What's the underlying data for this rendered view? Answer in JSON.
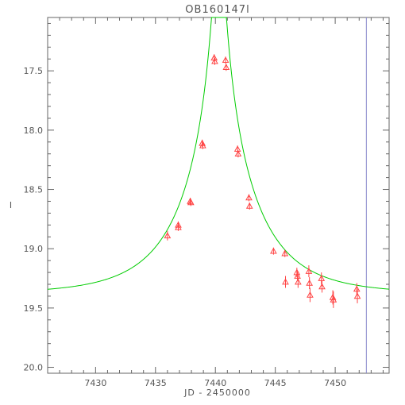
{
  "chart_data": {
    "type": "scatter",
    "title": "OB160147l",
    "xlabel": "JD - 2450000",
    "ylabel": "I",
    "xlim": [
      7426,
      7454.5
    ],
    "ylim": [
      20.05,
      17.05
    ],
    "y_inverted": true,
    "grid": false,
    "legend": "none",
    "xticks": [
      7430,
      7435,
      7440,
      7445,
      7450
    ],
    "xtick_labels": [
      "7430",
      "7435",
      "7440",
      "7445",
      "7450"
    ],
    "yticks": [
      17.5,
      18.0,
      18.5,
      19.0,
      19.5,
      20.0
    ],
    "ytick_labels": [
      "17.5",
      "18.0",
      "18.5",
      "19.0",
      "19.5",
      "20.0"
    ],
    "model_curve": {
      "t0": 7440.3,
      "tE": 6.0,
      "u0": 0.055,
      "baseline_mag": 19.38,
      "color": "#00cc00"
    },
    "vertical_line": {
      "x": 7452.6,
      "color": "#8888cc"
    },
    "points": [
      {
        "x": 7436.0,
        "y": 18.89,
        "err": 0.04
      },
      {
        "x": 7436.9,
        "y": 18.8,
        "err": 0.03
      },
      {
        "x": 7436.9,
        "y": 18.82,
        "err": 0.03
      },
      {
        "x": 7437.9,
        "y": 18.6,
        "err": 0.03
      },
      {
        "x": 7437.95,
        "y": 18.61,
        "err": 0.03
      },
      {
        "x": 7438.9,
        "y": 18.11,
        "err": 0.03
      },
      {
        "x": 7438.95,
        "y": 18.13,
        "err": 0.03
      },
      {
        "x": 7439.9,
        "y": 17.39,
        "err": 0.03
      },
      {
        "x": 7439.95,
        "y": 17.42,
        "err": 0.03
      },
      {
        "x": 7440.85,
        "y": 17.41,
        "err": 0.03
      },
      {
        "x": 7440.9,
        "y": 17.47,
        "err": 0.03
      },
      {
        "x": 7441.85,
        "y": 18.16,
        "err": 0.03
      },
      {
        "x": 7441.9,
        "y": 18.2,
        "err": 0.03
      },
      {
        "x": 7442.8,
        "y": 18.57,
        "err": 0.03
      },
      {
        "x": 7442.85,
        "y": 18.64,
        "err": 0.03
      },
      {
        "x": 7444.85,
        "y": 19.02,
        "err": 0.03
      },
      {
        "x": 7445.8,
        "y": 19.04,
        "err": 0.03
      },
      {
        "x": 7445.85,
        "y": 19.28,
        "err": 0.05
      },
      {
        "x": 7446.8,
        "y": 19.2,
        "err": 0.04
      },
      {
        "x": 7446.85,
        "y": 19.23,
        "err": 0.04
      },
      {
        "x": 7446.9,
        "y": 19.28,
        "err": 0.05
      },
      {
        "x": 7447.8,
        "y": 19.19,
        "err": 0.05
      },
      {
        "x": 7447.85,
        "y": 19.29,
        "err": 0.05
      },
      {
        "x": 7447.9,
        "y": 19.39,
        "err": 0.06
      },
      {
        "x": 7448.85,
        "y": 19.25,
        "err": 0.05
      },
      {
        "x": 7448.9,
        "y": 19.32,
        "err": 0.05
      },
      {
        "x": 7449.8,
        "y": 19.41,
        "err": 0.06
      },
      {
        "x": 7449.85,
        "y": 19.43,
        "err": 0.07
      },
      {
        "x": 7451.8,
        "y": 19.34,
        "err": 0.05
      },
      {
        "x": 7451.85,
        "y": 19.4,
        "err": 0.06
      }
    ],
    "marker": "triangle-open",
    "marker_color": "#ff4444",
    "axis_color": "#666666"
  }
}
